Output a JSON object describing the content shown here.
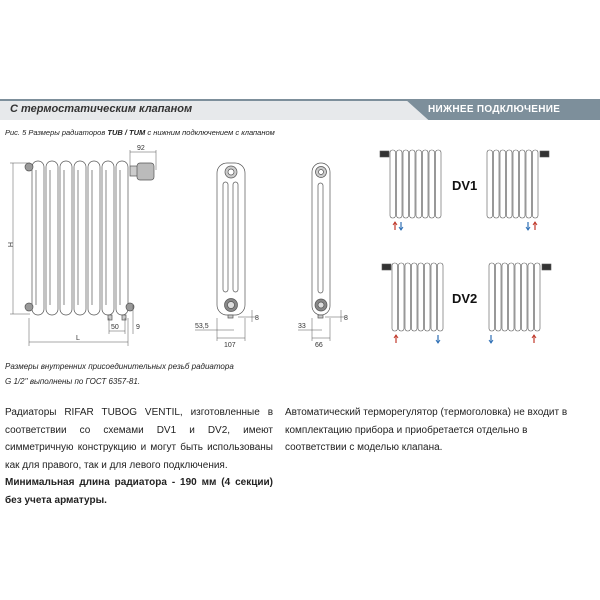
{
  "header": {
    "section_title": "С термостатическим клапаном",
    "tab_label": "НИЖНЕЕ ПОДКЛЮЧЕНИЕ"
  },
  "figure": {
    "caption_prefix": "Рис. 5 Размеры радиаторов ",
    "caption_models": "TUB / TUM",
    "caption_suffix": " с нижним подключением с клапаном",
    "dims": {
      "valve_offset": "92",
      "height": "H",
      "length": "L",
      "pipe_spacing": "50",
      "pipe_drop": "9",
      "side_depth_a": "107",
      "side_offset_a": "53,5",
      "side_depth_b": "66",
      "side_offset_b": "33",
      "nipple_a": "8",
      "nipple_b": "8"
    },
    "schemes": [
      "DV1",
      "DV2"
    ],
    "colors": {
      "supply": "#c0392b",
      "return": "#2e6fb5"
    }
  },
  "thread_note": {
    "line1": "Размеры внутренних присоединительных резьб радиатора",
    "line2": "G 1/2'' выполнены по ГОСТ 6357-81."
  },
  "body": {
    "left_text": "Радиаторы RIFAR TUBOG VENTIL, изготовленные в соответствии со схемами DV1 и DV2, имеют симметричную конструкцию и могут быть использованы как для правого, так и для левого подключения.",
    "left_bold": "Минимальная длина радиатора - 190 мм (4 секции) без учета арматуры.",
    "right_text": "Автоматический терморегулятор (термоголовка) не входит в комплектацию прибора и приобретается отдельно в соответствии с моделью клапана."
  }
}
